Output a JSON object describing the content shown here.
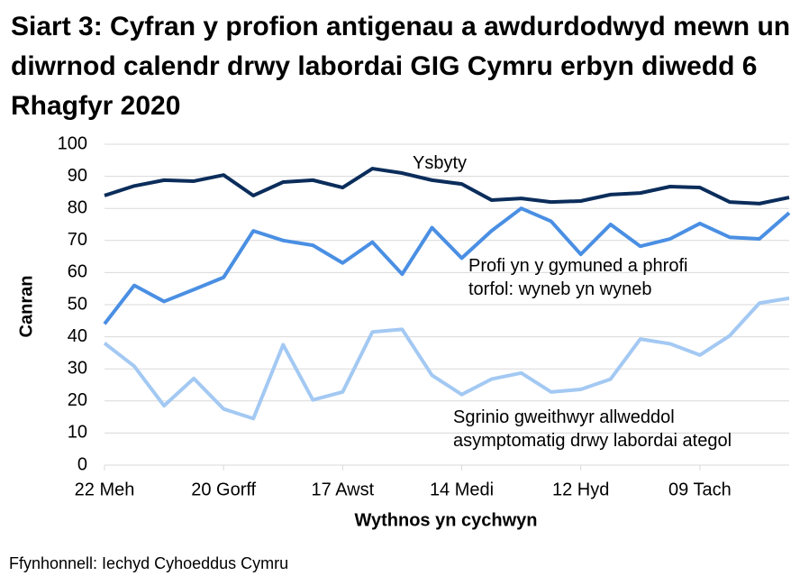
{
  "chart_data": {
    "type": "line",
    "title": "Siart 3: Cyfran y profion antigenau a awdurdodwyd mewn un diwrnod calendr drwy labordai GIG Cymru erbyn diwedd 6 Rhagfyr 2020",
    "x_label": "Wythnos yn cychwyn",
    "y_label": "Canran",
    "source": "Ffynhonnell: Iechyd Cyhoeddus Cymru",
    "categories": [
      "22 Meh",
      null,
      null,
      null,
      "20 Gorff",
      null,
      null,
      null,
      "17 Awst",
      null,
      null,
      null,
      "14 Medi",
      null,
      null,
      null,
      "12 Hyd",
      null,
      null,
      null,
      "09 Tach",
      null,
      null,
      null
    ],
    "ylim": [
      0,
      100
    ],
    "yticks": [
      0,
      10,
      20,
      30,
      40,
      50,
      60,
      70,
      80,
      90,
      100
    ],
    "grid": true,
    "series": [
      {
        "name": "Ysbyty",
        "color": "#0b2d5b",
        "values": [
          84,
          87,
          88.8,
          88.5,
          90.4,
          84,
          88.2,
          88.8,
          86.5,
          92.4,
          91,
          88.8,
          87.6,
          82.6,
          83.1,
          82,
          82.3,
          84.3,
          84.8,
          86.8,
          86.5,
          82,
          81.5,
          83.4
        ]
      },
      {
        "name": "Profi yn y gymuned a phrofi torfol: wyneb yn wyneb",
        "color": "#4a8fe3",
        "values": [
          44,
          56,
          51,
          54.7,
          58.5,
          73,
          70,
          68.5,
          63,
          69.5,
          59.5,
          74,
          64.5,
          73,
          80,
          76,
          65.7,
          75,
          68.2,
          70.5,
          75.3,
          71,
          70.5,
          78.6
        ]
      },
      {
        "name": "Sgrinio gweithwyr allweddol asymptomatig drwy labordai ategol",
        "color": "#a3c9f3",
        "values": [
          38,
          30.8,
          18.5,
          27,
          17.5,
          14.5,
          37.5,
          20.3,
          22.8,
          41.5,
          42.3,
          28,
          22,
          26.8,
          28.7,
          22.8,
          23.6,
          26.8,
          39.3,
          37.8,
          34.3,
          40.3,
          50.5,
          52
        ]
      }
    ]
  }
}
